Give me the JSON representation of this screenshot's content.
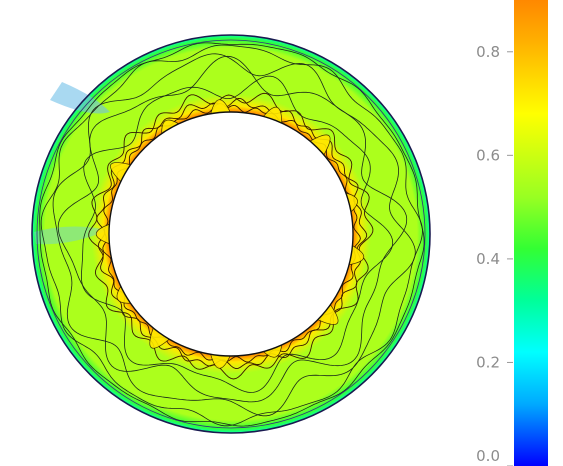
{
  "chart_data": {
    "type": "heatmap",
    "title": "",
    "geometry": "annulus",
    "contour_lines": true,
    "colorbar": {
      "placement": "right",
      "range": [
        0.0,
        0.9
      ],
      "ticks": [
        0.0,
        0.2,
        0.4,
        0.6,
        0.8
      ],
      "tick_labels": [
        "0.0",
        "0.2",
        "0.4",
        "0.6",
        "0.8"
      ],
      "stops": [
        {
          "value": 0.0,
          "color": "#0000ff"
        },
        {
          "value": 0.12,
          "color": "#00aaff"
        },
        {
          "value": 0.22,
          "color": "#00ffff"
        },
        {
          "value": 0.32,
          "color": "#00ff99"
        },
        {
          "value": 0.42,
          "color": "#33ff33"
        },
        {
          "value": 0.52,
          "color": "#99ff22"
        },
        {
          "value": 0.68,
          "color": "#ffff00"
        },
        {
          "value": 0.82,
          "color": "#ffb000"
        },
        {
          "value": 0.9,
          "color": "#ff8800"
        }
      ]
    },
    "field_levels": {
      "inner_boundary": 0.9,
      "plume_zone": 0.72,
      "interior": 0.55,
      "outer_boundary": 0.28
    }
  }
}
